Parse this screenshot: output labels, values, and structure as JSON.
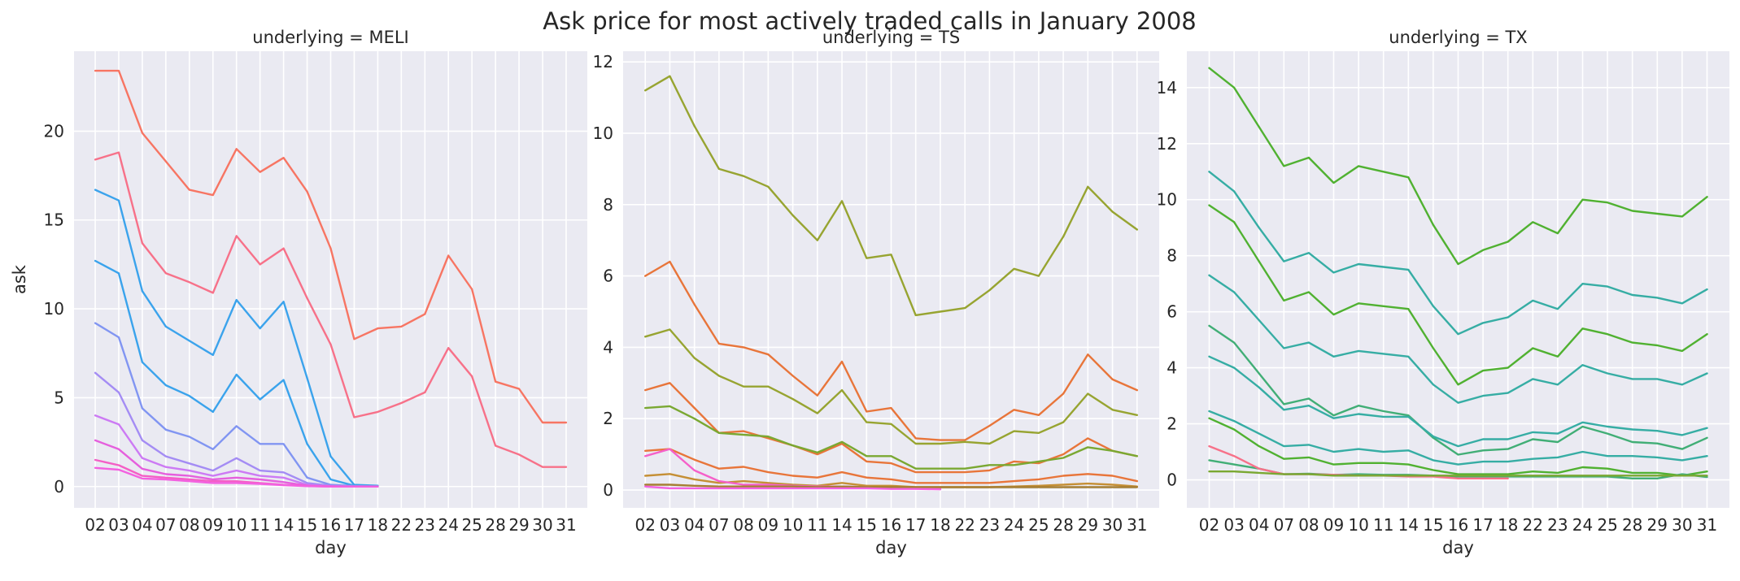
{
  "chart_data": {
    "type": "line",
    "title": "Ask price for most actively traded calls in January 2008",
    "x_categories": [
      "02",
      "03",
      "04",
      "07",
      "08",
      "09",
      "10",
      "11",
      "14",
      "15",
      "16",
      "17",
      "18",
      "22",
      "23",
      "24",
      "25",
      "28",
      "29",
      "30",
      "31"
    ],
    "xlabel": "day",
    "ylabel": "ask",
    "grid": true,
    "panels": [
      {
        "title": "underlying = MELI",
        "ylim": [
          -1.2,
          24.5
        ],
        "yticks": [
          0,
          5,
          10,
          15,
          20
        ],
        "series": [
          {
            "color": "#f77189",
            "values": [
              18.4,
              18.8,
              13.7,
              12.0,
              11.5,
              10.9,
              14.1,
              12.5,
              13.4,
              10.6,
              8.0,
              3.9,
              4.2,
              4.7,
              5.3,
              7.8,
              6.2,
              2.3,
              1.8,
              1.1,
              1.1
            ]
          },
          {
            "color": "#f77563",
            "values": [
              23.4,
              23.4,
              19.9,
              18.3,
              16.7,
              16.4,
              19.0,
              17.7,
              18.5,
              16.6,
              13.4,
              8.3,
              8.9,
              9.0,
              9.7,
              13.0,
              11.1,
              5.9,
              5.5,
              3.6,
              3.6
            ]
          },
          {
            "color": "#3ba3ec",
            "values": [
              16.7,
              16.1,
              11.0,
              9.0,
              8.2,
              7.4,
              10.5,
              8.9,
              10.4,
              6.1,
              1.7,
              0.1,
              0.05,
              null,
              null,
              null,
              null,
              null,
              null,
              null,
              null
            ]
          },
          {
            "color": "#3aa3ec",
            "values": [
              12.7,
              12.0,
              7.0,
              5.7,
              5.1,
              4.2,
              6.3,
              4.9,
              6.0,
              2.4,
              0.4,
              0.05,
              0.02,
              null,
              null,
              null,
              null,
              null,
              null,
              null,
              null
            ]
          },
          {
            "color": "#8195f2",
            "values": [
              9.2,
              8.4,
              4.4,
              3.2,
              2.8,
              2.1,
              3.4,
              2.4,
              2.4,
              0.5,
              0.1,
              0.03,
              0.01,
              null,
              null,
              null,
              null,
              null,
              null,
              null,
              null
            ]
          },
          {
            "color": "#a48cf4",
            "values": [
              6.4,
              5.3,
              2.6,
              1.7,
              1.3,
              0.9,
              1.6,
              0.9,
              0.8,
              0.2,
              0.05,
              0.01,
              0.0,
              null,
              null,
              null,
              null,
              null,
              null,
              null,
              null
            ]
          },
          {
            "color": "#cc7af4",
            "values": [
              4.0,
              3.5,
              1.6,
              1.1,
              0.9,
              0.6,
              0.9,
              0.6,
              0.5,
              0.1,
              0.02,
              0.0,
              0.0,
              null,
              null,
              null,
              null,
              null,
              null,
              null,
              null
            ]
          },
          {
            "color": "#e55fdd",
            "values": [
              2.6,
              2.1,
              1.0,
              0.7,
              0.6,
              0.4,
              0.5,
              0.4,
              0.25,
              0.05,
              0.01,
              0.0,
              0.0,
              null,
              null,
              null,
              null,
              null,
              null,
              null,
              null
            ]
          },
          {
            "color": "#f45fc6",
            "values": [
              1.5,
              1.2,
              0.6,
              0.5,
              0.4,
              0.3,
              0.3,
              0.2,
              0.1,
              0.03,
              0.0,
              0.0,
              0.0,
              null,
              null,
              null,
              null,
              null,
              null,
              null,
              null
            ]
          },
          {
            "color": "#f361e0",
            "values": [
              1.05,
              0.95,
              0.45,
              0.4,
              0.3,
              0.2,
              0.2,
              0.15,
              0.08,
              0.02,
              0.0,
              0.0,
              0.0,
              null,
              null,
              null,
              null,
              null,
              null,
              null,
              null
            ]
          }
        ]
      },
      {
        "title": "underlying = TS",
        "ylim": [
          -0.5,
          12.3
        ],
        "yticks": [
          0,
          2,
          4,
          6,
          8,
          10,
          12
        ],
        "series": [
          {
            "color": "#97a431",
            "values": [
              11.2,
              11.6,
              10.2,
              9.0,
              8.8,
              8.5,
              7.7,
              7.0,
              8.1,
              6.5,
              6.6,
              4.9,
              5.0,
              5.1,
              5.6,
              6.2,
              6.0,
              7.1,
              8.5,
              7.8,
              7.3
            ]
          },
          {
            "color": "#e8753a",
            "values": [
              6.0,
              6.4,
              5.2,
              4.1,
              4.0,
              3.8,
              3.2,
              2.65,
              3.6,
              2.2,
              2.3,
              1.45,
              1.4,
              1.4,
              1.8,
              2.25,
              2.1,
              2.7,
              3.8,
              3.1,
              2.8
            ]
          },
          {
            "color": "#97a431",
            "values": [
              4.3,
              4.5,
              3.7,
              3.2,
              2.9,
              2.9,
              2.55,
              2.15,
              2.8,
              1.9,
              1.85,
              1.3,
              1.3,
              1.35,
              1.3,
              1.65,
              1.6,
              1.9,
              2.7,
              2.25,
              2.1
            ]
          },
          {
            "color": "#e8753a",
            "values": [
              2.8,
              3.0,
              2.3,
              1.6,
              1.65,
              1.45,
              1.25,
              1.0,
              1.3,
              0.8,
              0.75,
              0.5,
              0.5,
              0.5,
              0.55,
              0.8,
              0.75,
              1.0,
              1.45,
              1.1,
              0.95
            ]
          },
          {
            "color": "#7aa832",
            "values": [
              2.3,
              2.35,
              2.0,
              1.6,
              1.55,
              1.5,
              1.25,
              1.05,
              1.35,
              0.95,
              0.95,
              0.6,
              0.6,
              0.6,
              0.7,
              0.7,
              0.8,
              0.9,
              1.2,
              1.1,
              0.95
            ]
          },
          {
            "color": "#e8753a",
            "values": [
              1.1,
              1.15,
              0.85,
              0.6,
              0.65,
              0.5,
              0.4,
              0.35,
              0.5,
              0.35,
              0.3,
              0.2,
              0.2,
              0.2,
              0.2,
              0.25,
              0.3,
              0.4,
              0.45,
              0.4,
              0.25
            ]
          },
          {
            "color": "#c58f35",
            "values": [
              0.4,
              0.45,
              0.3,
              0.2,
              0.25,
              0.2,
              0.15,
              0.12,
              0.2,
              0.12,
              0.12,
              0.08,
              0.08,
              0.08,
              0.08,
              0.1,
              0.12,
              0.15,
              0.18,
              0.15,
              0.1
            ]
          },
          {
            "color": "#f560c9",
            "values": [
              0.95,
              1.15,
              0.55,
              0.25,
              0.15,
              0.15,
              0.12,
              0.1,
              0.1,
              0.08,
              0.06,
              0.06,
              0.05,
              null,
              null,
              null,
              null,
              null,
              null,
              null,
              null
            ]
          },
          {
            "color": "#a57e33",
            "values": [
              0.15,
              0.15,
              0.12,
              0.1,
              0.1,
              0.1,
              0.1,
              0.08,
              0.1,
              0.08,
              0.08,
              0.08,
              0.08,
              0.08,
              0.08,
              0.08,
              0.08,
              0.08,
              0.08,
              0.08,
              0.08
            ]
          },
          {
            "color": "#f361e0",
            "values": [
              0.1,
              0.05,
              0.05,
              0.05,
              0.05,
              0.05,
              0.05,
              0.05,
              0.05,
              0.05,
              0.03,
              0.03,
              0.02,
              null,
              null,
              null,
              null,
              null,
              null,
              null,
              null
            ]
          }
        ]
      },
      {
        "title": "underlying = TX",
        "ylim": [
          -1.0,
          15.3
        ],
        "yticks": [
          0,
          2,
          4,
          6,
          8,
          10,
          12,
          14
        ],
        "series": [
          {
            "color": "#50b131",
            "values": [
              14.7,
              14.0,
              12.6,
              11.2,
              11.5,
              10.6,
              11.2,
              11.0,
              10.8,
              9.1,
              7.7,
              8.2,
              8.5,
              9.2,
              8.8,
              10.0,
              9.9,
              9.6,
              9.5,
              9.4,
              10.1
            ]
          },
          {
            "color": "#36ada4",
            "values": [
              11.0,
              10.3,
              9.0,
              7.8,
              8.1,
              7.4,
              7.7,
              7.6,
              7.5,
              6.2,
              5.2,
              5.6,
              5.8,
              6.4,
              6.1,
              7.0,
              6.9,
              6.6,
              6.5,
              6.3,
              6.8
            ]
          },
          {
            "color": "#50b131",
            "values": [
              9.8,
              9.2,
              7.8,
              6.4,
              6.7,
              5.9,
              6.3,
              6.2,
              6.1,
              4.7,
              3.4,
              3.9,
              4.0,
              4.7,
              4.4,
              5.4,
              5.2,
              4.9,
              4.8,
              4.6,
              5.2
            ]
          },
          {
            "color": "#36ada4",
            "values": [
              7.3,
              6.7,
              5.7,
              4.7,
              4.9,
              4.4,
              4.6,
              4.5,
              4.4,
              3.4,
              2.75,
              3.0,
              3.1,
              3.6,
              3.4,
              4.1,
              3.8,
              3.6,
              3.6,
              3.4,
              3.8
            ]
          },
          {
            "color": "#41ae76",
            "values": [
              5.5,
              4.9,
              3.8,
              2.7,
              2.9,
              2.3,
              2.65,
              2.45,
              2.3,
              1.5,
              0.9,
              1.05,
              1.1,
              1.45,
              1.35,
              1.9,
              1.65,
              1.35,
              1.3,
              1.1,
              1.5
            ]
          },
          {
            "color": "#36ada4",
            "values": [
              4.4,
              4.0,
              3.3,
              2.5,
              2.65,
              2.2,
              2.35,
              2.25,
              2.25,
              1.55,
              1.2,
              1.45,
              1.45,
              1.7,
              1.65,
              2.05,
              1.9,
              1.8,
              1.75,
              1.6,
              1.85
            ]
          },
          {
            "color": "#36ada4",
            "values": [
              2.45,
              2.1,
              1.65,
              1.2,
              1.25,
              1.0,
              1.1,
              1.0,
              1.05,
              0.7,
              0.55,
              0.65,
              0.65,
              0.75,
              0.8,
              1.0,
              0.85,
              0.85,
              0.8,
              0.7,
              0.85
            ]
          },
          {
            "color": "#50b131",
            "values": [
              2.2,
              1.8,
              1.2,
              0.75,
              0.8,
              0.55,
              0.6,
              0.6,
              0.55,
              0.35,
              0.2,
              0.2,
              0.2,
              0.3,
              0.25,
              0.45,
              0.4,
              0.25,
              0.25,
              0.15,
              0.3
            ]
          },
          {
            "color": "#41ae76",
            "values": [
              0.7,
              0.55,
              0.4,
              0.2,
              0.22,
              0.18,
              0.2,
              0.18,
              0.18,
              0.15,
              0.12,
              0.12,
              0.12,
              0.12,
              0.12,
              0.12,
              0.12,
              0.05,
              0.05,
              0.2,
              0.1
            ]
          },
          {
            "color": "#f77189",
            "values": [
              1.2,
              0.85,
              0.4,
              0.2,
              0.2,
              0.18,
              0.15,
              0.15,
              0.12,
              0.12,
              0.05,
              0.05,
              0.05,
              null,
              null,
              null,
              null,
              null,
              null,
              null,
              null
            ]
          },
          {
            "color": "#7aa832",
            "values": [
              0.3,
              0.3,
              0.25,
              0.2,
              0.2,
              0.15,
              0.15,
              0.15,
              0.15,
              0.15,
              0.15,
              0.15,
              0.15,
              0.15,
              0.15,
              0.15,
              0.15,
              0.15,
              0.15,
              0.15,
              0.15
            ]
          }
        ]
      }
    ]
  }
}
